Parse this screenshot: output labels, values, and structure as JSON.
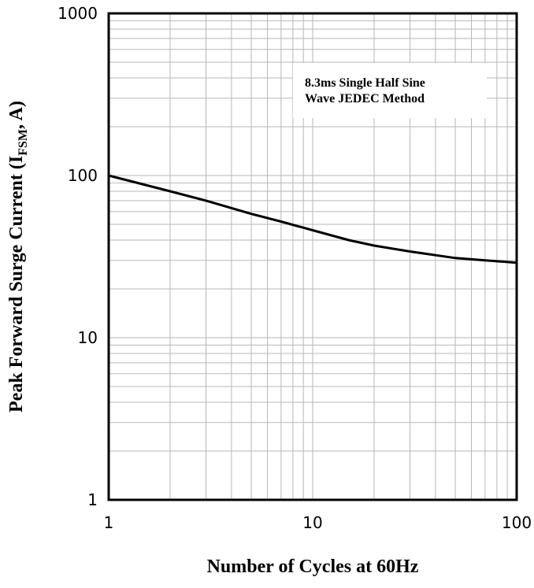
{
  "chart_data": {
    "type": "line",
    "x_scale": "log",
    "y_scale": "log",
    "xlim": [
      1,
      100
    ],
    "ylim": [
      1,
      1000
    ],
    "grid": true,
    "x_ticks": [
      "1",
      "10",
      "100"
    ],
    "y_ticks": [
      "1",
      "10",
      "100",
      "1000"
    ],
    "xlabel": "Number of Cycles at 60Hz",
    "ylabel": {
      "prefix": "Peak Forward Surge Current (I",
      "subscript": "FSM",
      "suffix": ", A)"
    },
    "annotation": [
      "8.3ms Single Half Sine",
      "Wave JEDEC Method"
    ],
    "series": [
      {
        "x": [
          1,
          2,
          3,
          5,
          7,
          10,
          15,
          20,
          30,
          50,
          70,
          100
        ],
        "values": [
          100,
          80,
          70,
          58,
          52,
          46,
          40,
          37,
          34,
          31,
          30,
          29
        ]
      }
    ]
  }
}
